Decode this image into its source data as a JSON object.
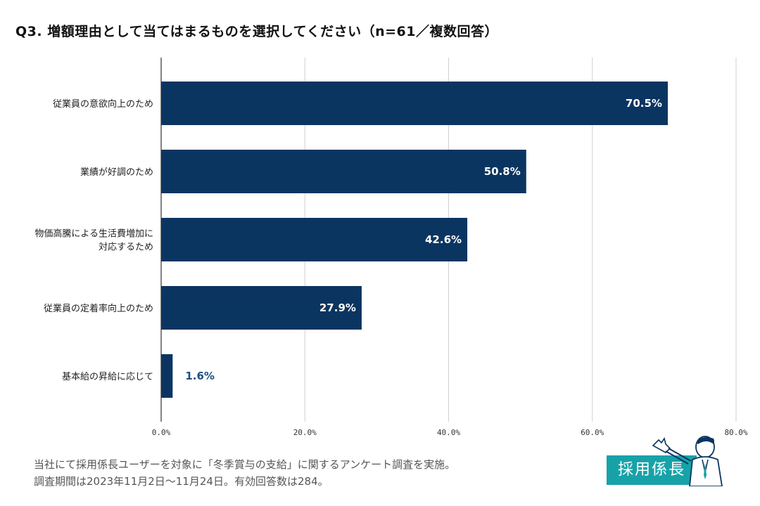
{
  "title": "Q3.  増額理由として当てはまるものを選択してください（n=61／複数回答）",
  "chart_data": {
    "type": "bar",
    "orientation": "horizontal",
    "categories": [
      [
        "従業員の意欲向上のため"
      ],
      [
        "業績が好調のため"
      ],
      [
        "物価高騰による生活費増加に",
        "対応するため"
      ],
      [
        "従業員の定着率向上のため"
      ],
      [
        "基本給の昇給に応じて"
      ]
    ],
    "values": [
      70.5,
      50.8,
      42.6,
      27.9,
      1.6
    ],
    "value_labels": [
      "70.5%",
      "50.8%",
      "42.6%",
      "27.9%",
      "1.6%"
    ],
    "xlim": [
      0,
      80
    ],
    "ticks": [
      0,
      20,
      40,
      60,
      80
    ],
    "tick_labels": [
      "0.0%",
      "20.0%",
      "40.0%",
      "60.0%",
      "80.0%"
    ],
    "bar_color": "#0b3561",
    "grid": true
  },
  "footnote": {
    "line1": "当社にて採用係長ユーザーを対象に「冬季賞与の支給」に関するアンケート調査を実施。",
    "line2": "調査期間は2023年11月2日〜11月24日。有効回答数は284。"
  },
  "logo": {
    "text": "採用係長",
    "color": "#17a2a8"
  }
}
